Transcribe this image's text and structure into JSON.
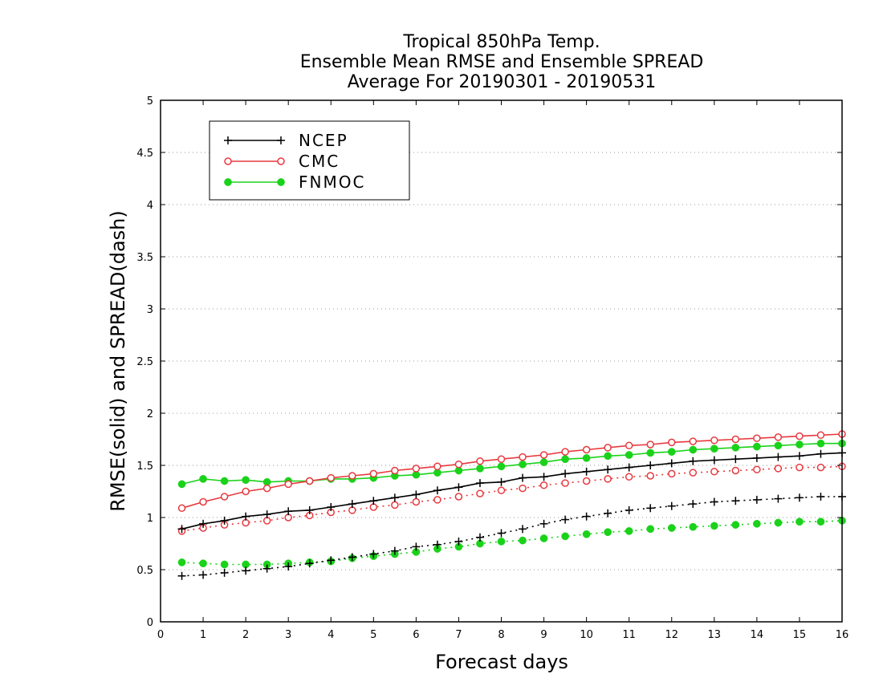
{
  "chart_data": {
    "type": "line",
    "title": [
      "Tropical 850hPa Temp.",
      "Ensemble Mean RMSE and Ensemble SPREAD",
      "Average For 20190301 - 20190531"
    ],
    "xlabel": "Forecast days",
    "ylabel": "RMSE(solid) and SPREAD(dash)",
    "xlim": [
      0,
      16
    ],
    "ylim": [
      0,
      5
    ],
    "xticks": [
      0,
      1,
      2,
      3,
      4,
      5,
      6,
      7,
      8,
      9,
      10,
      11,
      12,
      13,
      14,
      15,
      16
    ],
    "yticks": [
      0,
      0.5,
      1,
      1.5,
      2,
      2.5,
      3,
      3.5,
      4,
      4.5,
      5
    ],
    "ytick_labels": [
      "0",
      "0.5",
      "1",
      "1.5",
      "2",
      "2.5",
      "3",
      "3.5",
      "4",
      "4.5",
      "5"
    ],
    "grid": "horizontal-dotted",
    "legend_position": "top-left",
    "x": [
      0.5,
      1,
      1.5,
      2,
      2.5,
      3,
      3.5,
      4,
      4.5,
      5,
      5.5,
      6,
      6.5,
      7,
      7.5,
      8,
      8.5,
      9,
      9.5,
      10,
      10.5,
      11,
      11.5,
      12,
      12.5,
      13,
      13.5,
      14,
      14.5,
      15,
      15.5,
      16
    ],
    "series": [
      {
        "name": "NCEP",
        "color": "#000000",
        "marker": "plus",
        "rmse": [
          0.89,
          0.94,
          0.97,
          1.01,
          1.03,
          1.06,
          1.07,
          1.1,
          1.13,
          1.16,
          1.19,
          1.22,
          1.26,
          1.29,
          1.33,
          1.34,
          1.38,
          1.39,
          1.42,
          1.44,
          1.46,
          1.48,
          1.5,
          1.52,
          1.54,
          1.55,
          1.56,
          1.57,
          1.58,
          1.59,
          1.61,
          1.62
        ],
        "spread": [
          0.44,
          0.45,
          0.47,
          0.49,
          0.51,
          0.53,
          0.56,
          0.59,
          0.62,
          0.65,
          0.68,
          0.72,
          0.74,
          0.77,
          0.81,
          0.85,
          0.89,
          0.94,
          0.98,
          1.01,
          1.04,
          1.07,
          1.09,
          1.11,
          1.13,
          1.15,
          1.16,
          1.17,
          1.18,
          1.19,
          1.2,
          1.2
        ]
      },
      {
        "name": "CMC",
        "color": "#e8393f",
        "marker": "open-circle",
        "rmse": [
          1.09,
          1.15,
          1.2,
          1.25,
          1.28,
          1.32,
          1.35,
          1.38,
          1.4,
          1.42,
          1.45,
          1.47,
          1.49,
          1.51,
          1.54,
          1.56,
          1.58,
          1.6,
          1.63,
          1.65,
          1.67,
          1.69,
          1.7,
          1.72,
          1.73,
          1.74,
          1.75,
          1.76,
          1.77,
          1.78,
          1.79,
          1.8
        ],
        "spread": [
          0.87,
          0.9,
          0.93,
          0.95,
          0.97,
          1.0,
          1.02,
          1.05,
          1.07,
          1.1,
          1.12,
          1.15,
          1.17,
          1.2,
          1.23,
          1.26,
          1.28,
          1.31,
          1.33,
          1.35,
          1.37,
          1.39,
          1.4,
          1.42,
          1.43,
          1.44,
          1.45,
          1.46,
          1.47,
          1.48,
          1.48,
          1.49
        ]
      },
      {
        "name": "FNMOC",
        "color": "#1ad21a",
        "marker": "filled-circle",
        "rmse": [
          1.32,
          1.37,
          1.35,
          1.36,
          1.34,
          1.35,
          1.35,
          1.37,
          1.37,
          1.38,
          1.4,
          1.41,
          1.43,
          1.45,
          1.47,
          1.49,
          1.51,
          1.53,
          1.56,
          1.57,
          1.59,
          1.6,
          1.62,
          1.63,
          1.65,
          1.66,
          1.67,
          1.68,
          1.69,
          1.7,
          1.71,
          1.71
        ],
        "spread": [
          0.57,
          0.56,
          0.55,
          0.55,
          0.55,
          0.56,
          0.57,
          0.58,
          0.61,
          0.63,
          0.65,
          0.67,
          0.7,
          0.72,
          0.75,
          0.77,
          0.78,
          0.8,
          0.82,
          0.84,
          0.86,
          0.87,
          0.89,
          0.9,
          0.91,
          0.92,
          0.93,
          0.94,
          0.95,
          0.96,
          0.96,
          0.97
        ]
      }
    ]
  }
}
